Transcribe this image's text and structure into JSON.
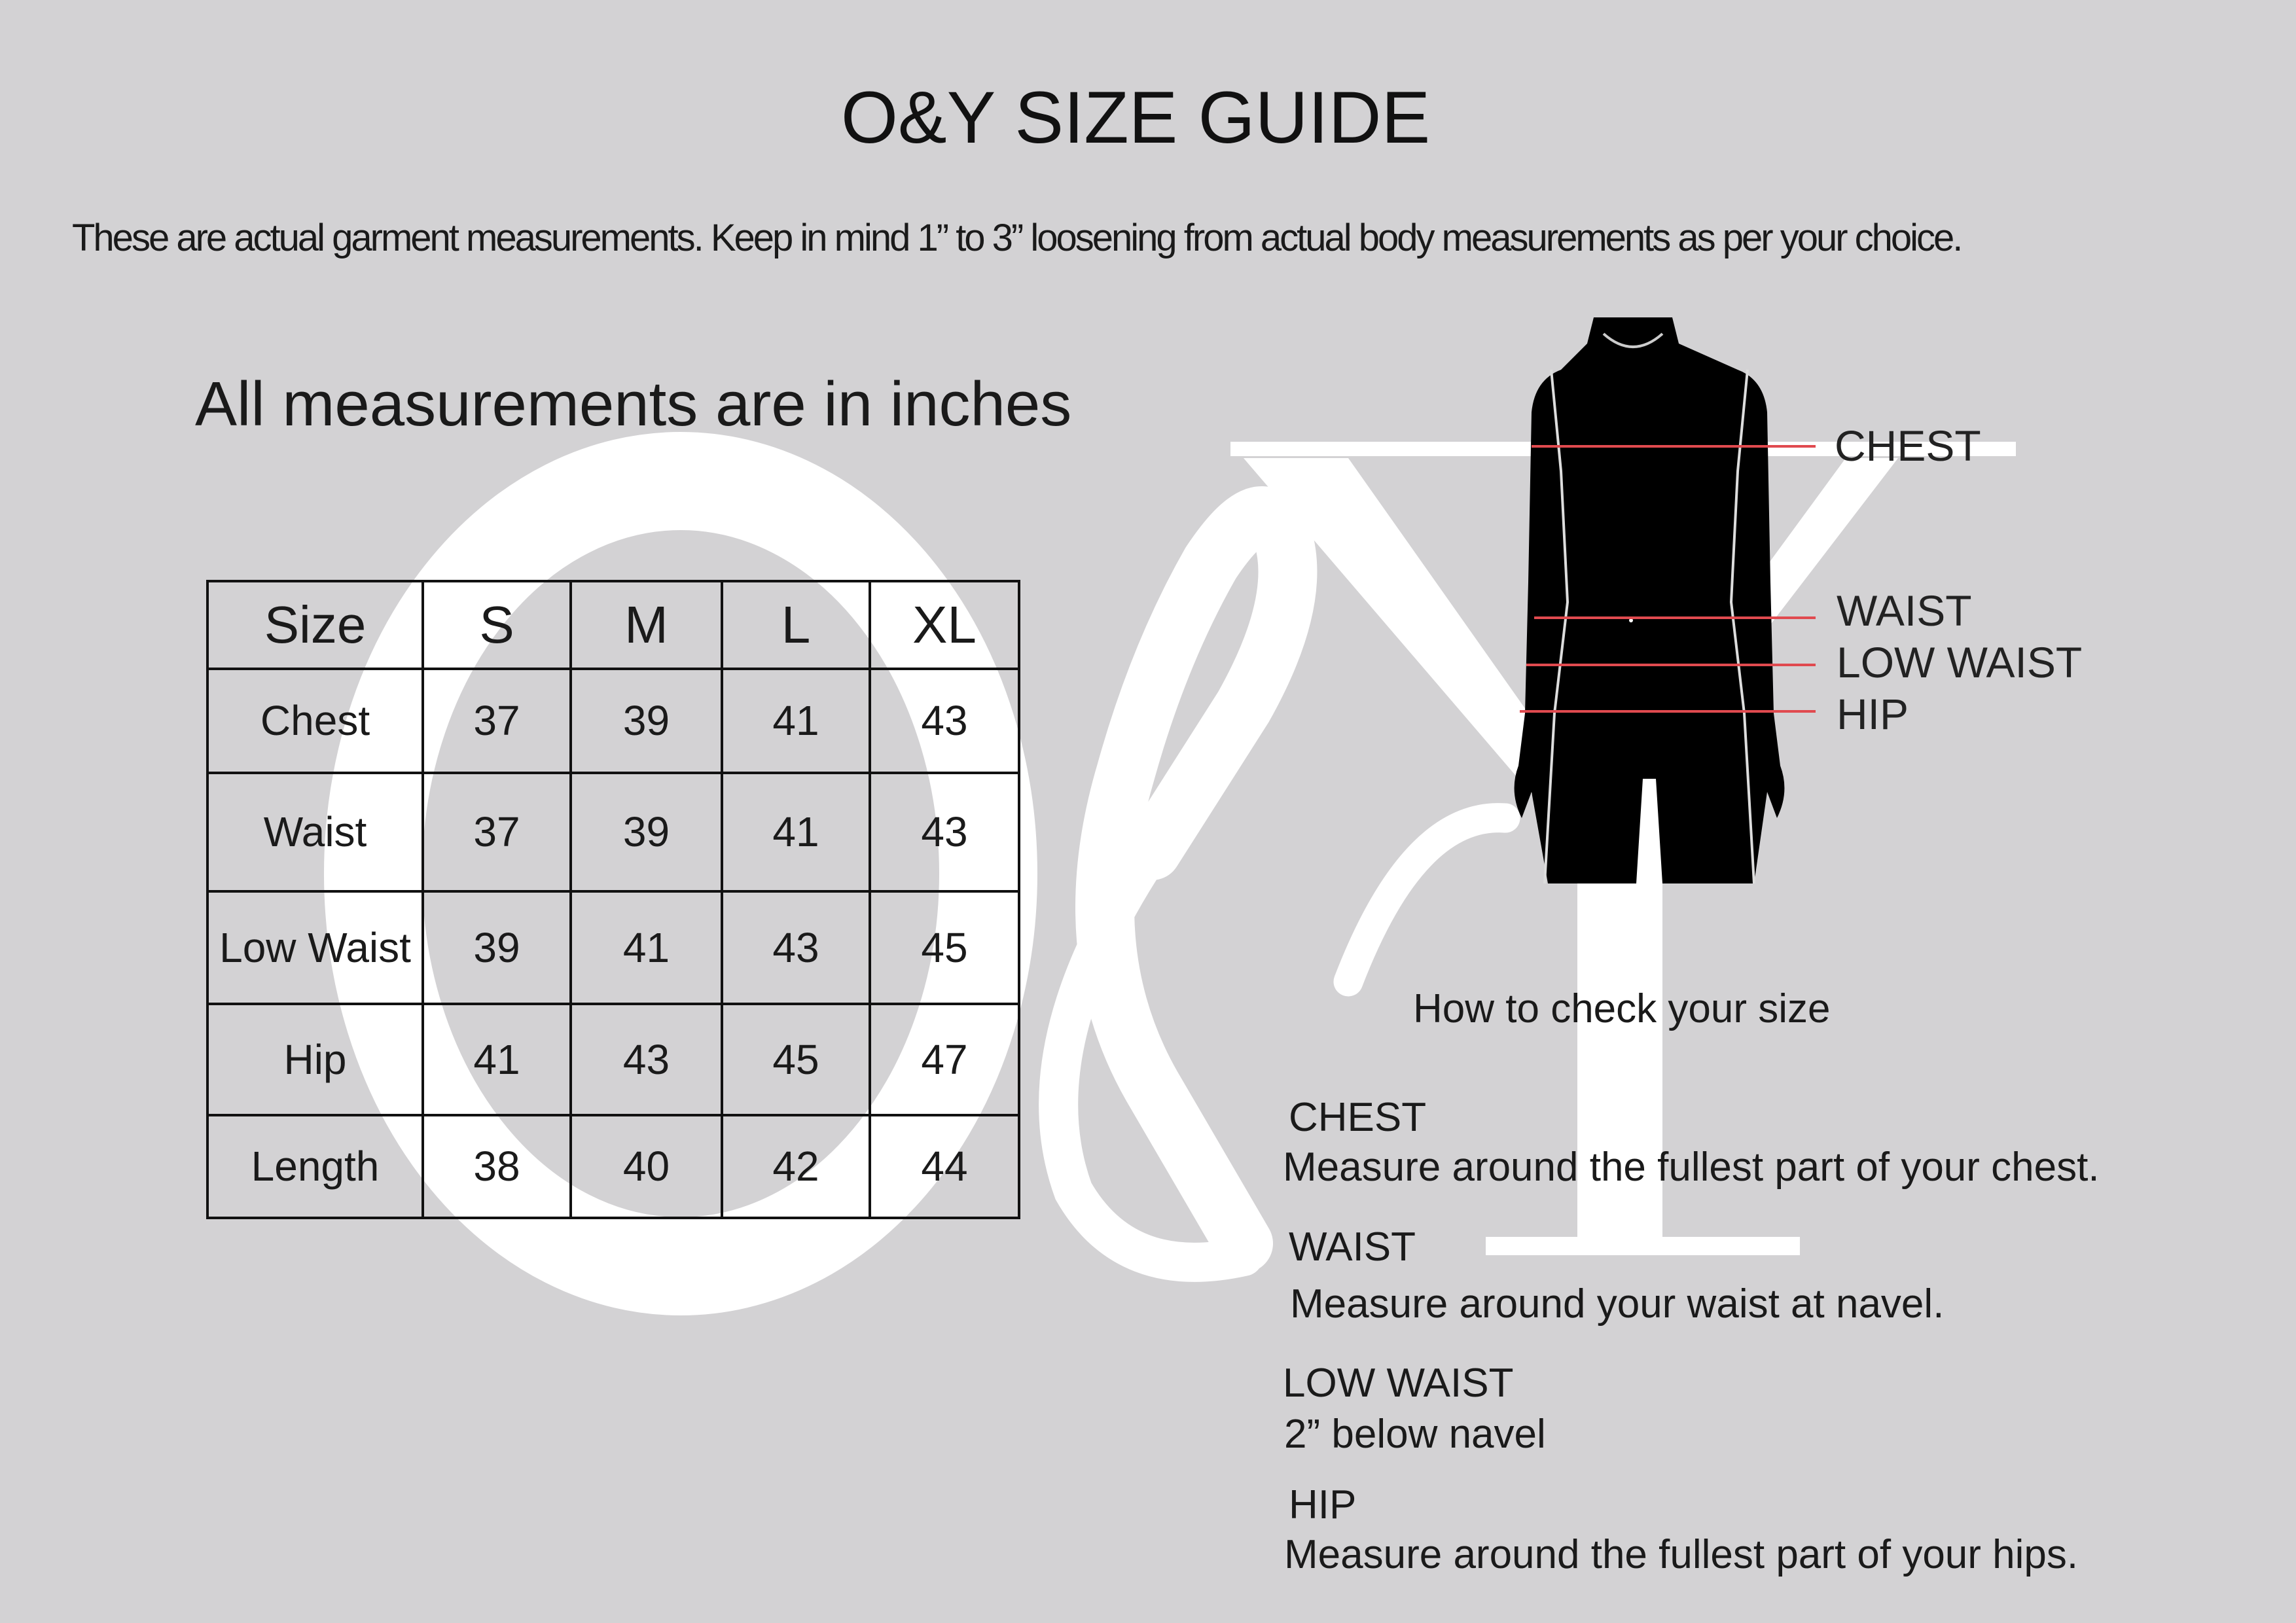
{
  "title": "O&Y SIZE GUIDE",
  "subtitle": "These are actual garment measurements. Keep in mind 1” to 3” loosening from actual body measurements as per your choice.",
  "units_note": "All measurements are in inches",
  "watermark": {
    "text": "O&Y",
    "color": "#ffffff"
  },
  "table": {
    "headers": [
      "Size",
      "S",
      "M",
      "L",
      "XL"
    ],
    "rows": [
      {
        "label": "Chest",
        "values": [
          "37",
          "39",
          "41",
          "43"
        ]
      },
      {
        "label": "Waist",
        "values": [
          "37",
          "39",
          "41",
          "43"
        ]
      },
      {
        "label": "Low Waist",
        "values": [
          "39",
          "41",
          "43",
          "45"
        ]
      },
      {
        "label": "Hip",
        "values": [
          "41",
          "43",
          "45",
          "47"
        ]
      },
      {
        "label": "Length",
        "values": [
          "38",
          "40",
          "42",
          "44"
        ]
      }
    ]
  },
  "figure": {
    "labels": [
      "CHEST",
      "WAIST",
      "LOW WAIST",
      "HIP"
    ],
    "line_color": "#e04a4f",
    "silhouette_color": "#000000"
  },
  "howto": {
    "heading": "How to check your size",
    "items": [
      {
        "title": "CHEST",
        "desc": "Measure around the fullest part of your chest."
      },
      {
        "title": "WAIST",
        "desc": "Measure around your waist at navel."
      },
      {
        "title": "LOW WAIST",
        "desc": "2” below navel"
      },
      {
        "title": "HIP",
        "desc": "Measure around the fullest part of your hips."
      }
    ]
  },
  "colors": {
    "background": "#d3d2d4",
    "text": "#1a1a1a"
  }
}
